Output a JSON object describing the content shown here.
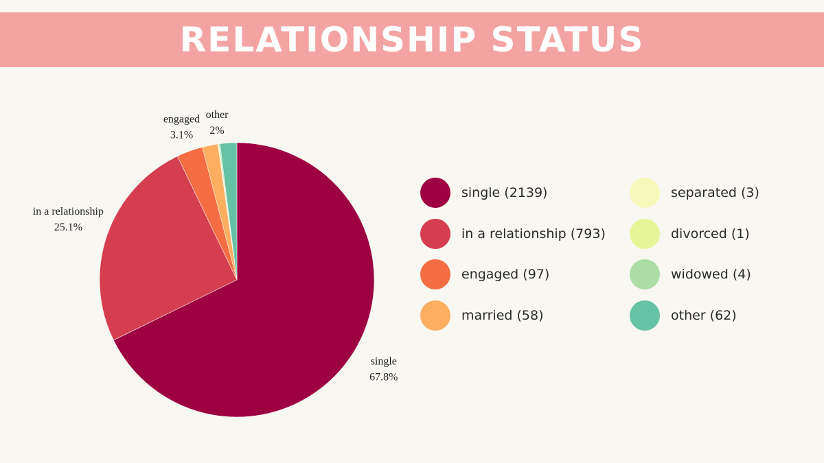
{
  "chart_data": {
    "type": "pie",
    "title": "RELATIONSHIP STATUS",
    "slices": [
      {
        "name": "single",
        "value": 2139,
        "color": "#9e0142",
        "label": "single",
        "percent_label": "67.8%"
      },
      {
        "name": "in a relationship",
        "value": 793,
        "color": "#d53e4f",
        "label": "in a relationship",
        "percent_label": "25.1%"
      },
      {
        "name": "engaged",
        "value": 97,
        "color": "#f46d43",
        "label": "engaged",
        "percent_label": "3.1%"
      },
      {
        "name": "married",
        "value": 58,
        "color": "#fdae61",
        "label": "",
        "percent_label": ""
      },
      {
        "name": "separated",
        "value": 3,
        "color": "#f7f8bb",
        "label": "",
        "percent_label": ""
      },
      {
        "name": "divorced",
        "value": 1,
        "color": "#e6f598",
        "label": "",
        "percent_label": ""
      },
      {
        "name": "widowed",
        "value": 4,
        "color": "#abdda4",
        "label": "",
        "percent_label": ""
      },
      {
        "name": "other",
        "value": 62,
        "color": "#66c2a5",
        "label": "",
        "percent_label": ""
      }
    ],
    "combined_label": {
      "label": "other",
      "percent_label": "2%"
    },
    "legend": [
      {
        "text": "single (2139)",
        "color": "#9e0142"
      },
      {
        "text": "in a relationship (793)",
        "color": "#d53e4f"
      },
      {
        "text": "engaged (97)",
        "color": "#f46d43"
      },
      {
        "text": "married (58)",
        "color": "#fdae61"
      },
      {
        "text": "separated (3)",
        "color": "#f7f8bb"
      },
      {
        "text": "divorced (1)",
        "color": "#e6f598"
      },
      {
        "text": "widowed (4)",
        "color": "#abdda4"
      },
      {
        "text": "other (62)",
        "color": "#66c2a5"
      }
    ],
    "legend_placement": "right"
  },
  "colors": {
    "banner": "#f4a3a3",
    "background": "#f9f7f2",
    "title_text": "#ffffff"
  }
}
